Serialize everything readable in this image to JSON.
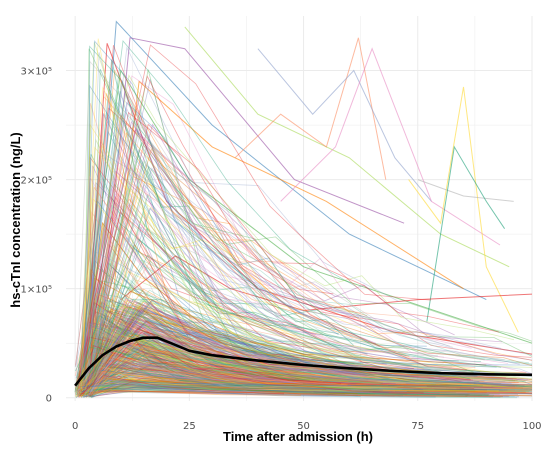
{
  "chart_data": {
    "type": "line",
    "title": "",
    "xlabel": "Time after admission (h)",
    "ylabel": "hs-cTnI concentration (ng/L)",
    "xlim": [
      -2,
      100
    ],
    "ylim": [
      -3000,
      350000
    ],
    "x_ticks": [
      0,
      25,
      50,
      75,
      100
    ],
    "x_tick_labels": [
      "0",
      "25",
      "50",
      "75",
      "100"
    ],
    "y_ticks": [
      0,
      100000,
      200000,
      300000
    ],
    "y_tick_labels": [
      "0",
      "1×10⁵",
      "2×10⁵",
      "3×10⁵"
    ],
    "grid": true,
    "legend": "none",
    "colors": {
      "background": "#ffffff",
      "grid": "#ebebeb",
      "mean_line": "#000000",
      "individual_palette": [
        "#e41a1c",
        "#377eb8",
        "#4daf4a",
        "#984ea3",
        "#ff7f00",
        "#a6d854",
        "#66c2a5",
        "#fc8d62",
        "#8da0cb",
        "#e78ac3",
        "#ffd92f",
        "#b3b3b3",
        "#1b9e77",
        "#d95f02",
        "#7570b3"
      ]
    },
    "series": [
      {
        "role": "mean",
        "x": [
          0,
          3,
          6,
          9,
          12,
          15,
          18,
          21,
          25,
          30,
          40,
          50,
          60,
          70,
          80,
          90,
          100
        ],
        "y": [
          11000,
          27000,
          39000,
          47000,
          52000,
          55000,
          55000,
          50000,
          43000,
          39000,
          34000,
          30000,
          27000,
          24500,
          22500,
          21500,
          21000
        ]
      },
      {
        "role": "individual",
        "x": [
          2,
          7,
          20,
          40,
          70,
          100
        ],
        "y": [
          10000,
          325000,
          180000,
          100000,
          60000,
          40000
        ]
      },
      {
        "role": "individual",
        "x": [
          3,
          9,
          30,
          60,
          90
        ],
        "y": [
          20000,
          345000,
          250000,
          150000,
          90000
        ]
      },
      {
        "role": "individual",
        "x": [
          0,
          10,
          25,
          50,
          100
        ],
        "y": [
          5000,
          300000,
          200000,
          120000,
          50000
        ]
      },
      {
        "role": "individual",
        "x": [
          5,
          12,
          24,
          48,
          72
        ],
        "y": [
          30000,
          330000,
          320000,
          200000,
          160000
        ]
      },
      {
        "role": "individual",
        "x": [
          6,
          14,
          30,
          55,
          85
        ],
        "y": [
          15000,
          290000,
          230000,
          180000,
          100000
        ]
      },
      {
        "role": "individual",
        "x": [
          24,
          40,
          60,
          80,
          95
        ],
        "y": [
          340000,
          260000,
          220000,
          150000,
          120000
        ]
      },
      {
        "role": "individual",
        "x": [
          1,
          8,
          16,
          32,
          64
        ],
        "y": [
          8000,
          310000,
          150000,
          80000,
          40000
        ]
      },
      {
        "role": "individual",
        "x": [
          35,
          45,
          55,
          62,
          68
        ],
        "y": [
          220000,
          260000,
          230000,
          330000,
          200000
        ]
      },
      {
        "role": "individual",
        "x": [
          40,
          52,
          61,
          70,
          78
        ],
        "y": [
          320000,
          260000,
          300000,
          220000,
          180000
        ]
      },
      {
        "role": "individual",
        "x": [
          45,
          57,
          65,
          78,
          93
        ],
        "y": [
          180000,
          230000,
          320000,
          180000,
          140000
        ]
      },
      {
        "role": "individual",
        "x": [
          73,
          80,
          85,
          90,
          97
        ],
        "y": [
          200000,
          160000,
          285000,
          120000,
          60000
        ]
      },
      {
        "role": "individual",
        "x": [
          75,
          85,
          96
        ],
        "y": [
          200000,
          185000,
          180000
        ]
      },
      {
        "role": "individual",
        "x": [
          77,
          83,
          90,
          94
        ],
        "y": [
          70000,
          230000,
          180000,
          155000
        ]
      },
      {
        "role": "individual",
        "x": [
          2,
          6,
          15,
          30,
          50,
          90
        ],
        "y": [
          20000,
          160000,
          110000,
          60000,
          40000,
          30000
        ]
      },
      {
        "role": "individual",
        "x": [
          3,
          8,
          18,
          36,
          60,
          100
        ],
        "y": [
          10000,
          120000,
          80000,
          50000,
          30000,
          20000
        ]
      },
      {
        "role": "individual",
        "x": [
          10,
          22,
          34,
          50,
          75,
          100
        ],
        "y": [
          90000,
          130000,
          100000,
          80000,
          90000,
          95000
        ]
      }
    ]
  }
}
